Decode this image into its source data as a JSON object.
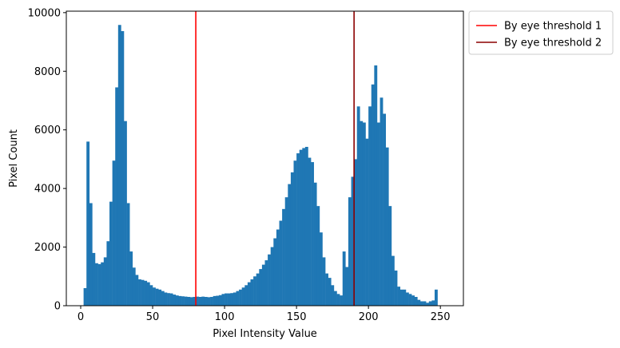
{
  "chart_data": {
    "type": "bar",
    "title": "",
    "xlabel": "Pixel Intensity Value",
    "ylabel": "Pixel Count",
    "xlim": [
      -10,
      266
    ],
    "ylim": [
      0,
      10050
    ],
    "xticks": [
      0,
      50,
      100,
      150,
      200,
      250
    ],
    "yticks": [
      0,
      2000,
      4000,
      6000,
      8000,
      10000
    ],
    "bin_start": 2,
    "bin_width": 2,
    "bar_color": "#1f77b4",
    "series": [
      {
        "values": [
          600,
          5600,
          3500,
          1800,
          1450,
          1420,
          1480,
          1650,
          2200,
          3550,
          4950,
          7450,
          9580,
          9370,
          6300,
          3500,
          1850,
          1300,
          1050,
          900,
          880,
          850,
          800,
          700,
          620,
          580,
          550,
          500,
          450,
          430,
          420,
          380,
          350,
          330,
          320,
          310,
          300,
          290,
          300,
          310,
          300,
          310,
          300,
          290,
          300,
          330,
          340,
          360,
          400,
          420,
          420,
          430,
          450,
          500,
          550,
          620,
          700,
          800,
          900,
          1000,
          1100,
          1250,
          1400,
          1550,
          1750,
          2000,
          2300,
          2600,
          2900,
          3300,
          3700,
          4150,
          4550,
          4950,
          5200,
          5320,
          5380,
          5420,
          5050,
          4900,
          4200,
          3400,
          2500,
          1650,
          1100,
          950,
          700,
          500,
          400,
          350,
          1850,
          1320,
          3700,
          4400,
          5000,
          6800,
          6300,
          6250,
          5700,
          6800,
          7550,
          8200,
          6250,
          7100,
          6550,
          5400,
          3400,
          1700,
          1200,
          650,
          550,
          550,
          450,
          400,
          350,
          300,
          200,
          150,
          150,
          100,
          150,
          180,
          550
        ]
      }
    ],
    "lines": [
      {
        "name": "By eye threshold 1",
        "x": 80,
        "color": "#ff0000"
      },
      {
        "name": "By eye threshold 2",
        "x": 190,
        "color": "#8b0000"
      }
    ],
    "legend_position": "outside-right-top"
  }
}
